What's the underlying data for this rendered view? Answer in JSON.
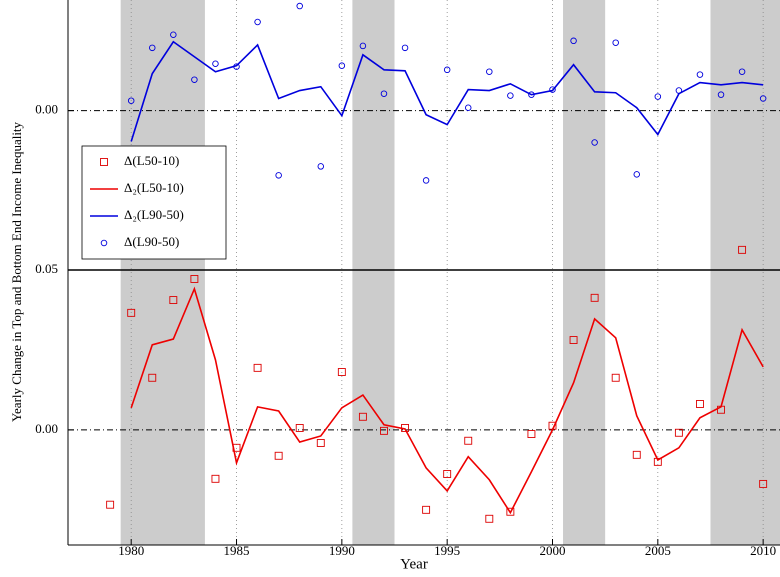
{
  "chart_data": [
    {
      "type": "line",
      "panel": "top",
      "ylim": [
        -0.05,
        0.0347
      ],
      "yticks": [
        {
          "value": 0,
          "label": "0.00"
        }
      ],
      "shaded_x": [
        [
          1979.5,
          1983.5
        ],
        [
          1990.5,
          1992.5
        ],
        [
          2000.5,
          2002.5
        ],
        [
          2007.5,
          2010.8
        ]
      ],
      "legend": "upper left",
      "series": [
        {
          "name": "Δ₂(L90-50)",
          "color": "#0000dd",
          "style": "line",
          "x": [
            1980,
            1981,
            1982,
            1983,
            1984,
            1985,
            1986,
            1987,
            1988,
            1989,
            1990,
            1991,
            1992,
            1993,
            1994,
            1995,
            1996,
            1997,
            1998,
            1999,
            2000,
            2001,
            2002,
            2003,
            2004,
            2005,
            2006,
            2007,
            2008,
            2009,
            2010
          ],
          "values": [
            -0.0097,
            0.0116,
            0.0216,
            0.0169,
            0.0122,
            0.0141,
            0.0206,
            0.0038,
            0.0063,
            0.0075,
            -0.0016,
            0.0175,
            0.0128,
            0.0125,
            -0.0013,
            -0.0044,
            0.0066,
            0.0063,
            0.0084,
            0.005,
            0.0063,
            0.0144,
            0.0059,
            0.0056,
            0.0009,
            -0.0075,
            0.0053,
            0.0088,
            0.0081,
            0.0088,
            0.0081
          ]
        },
        {
          "name": "Δ(L90-50)",
          "color": "#0000dd",
          "style": "marker",
          "marker": "circle",
          "x": [
            1980,
            1981,
            1982,
            1983,
            1984,
            1985,
            1986,
            1987,
            1988,
            1989,
            1990,
            1991,
            1992,
            1993,
            1994,
            1995,
            1996,
            1997,
            1998,
            1999,
            2000,
            2001,
            2002,
            2003,
            2004,
            2005,
            2006,
            2007,
            2008,
            2009,
            2010
          ],
          "values": [
            0.0031,
            0.0197,
            0.0238,
            0.0097,
            0.0147,
            0.0138,
            0.0278,
            -0.0203,
            0.0328,
            -0.0175,
            0.0141,
            0.0203,
            0.0053,
            0.0197,
            -0.0219,
            0.0128,
            0.0009,
            0.0122,
            0.0047,
            0.005,
            0.0066,
            0.0219,
            -0.01,
            0.0213,
            -0.02,
            0.0044,
            0.0063,
            0.0113,
            0.005,
            0.0122,
            0.0038
          ]
        }
      ]
    },
    {
      "type": "line",
      "panel": "bottom",
      "xlabel": "Year",
      "ylabel": "Yearly Change in Top and Bottom End Income Inequality",
      "xlim": [
        1977,
        2010.8
      ],
      "xticks": [
        1980,
        1985,
        1990,
        1995,
        2000,
        2005,
        2010
      ],
      "xgrid": true,
      "ylim": [
        -0.036,
        0.05
      ],
      "yticks": [
        {
          "value": 0,
          "label": "0.00"
        },
        {
          "value": 0.05,
          "label": "0.05"
        }
      ],
      "shaded_x": [
        [
          1979.5,
          1983.5
        ],
        [
          1990.5,
          1992.5
        ],
        [
          2000.5,
          2002.5
        ],
        [
          2007.5,
          2010.8
        ]
      ],
      "series": [
        {
          "name": "Δ(L50-10)",
          "color": "#dd0000",
          "style": "marker",
          "marker": "square",
          "x": [
            1979,
            1980,
            1981,
            1982,
            1983,
            1984,
            1985,
            1986,
            1987,
            1988,
            1989,
            1990,
            1991,
            1992,
            1993,
            1994,
            1995,
            1996,
            1997,
            1998,
            1999,
            2000,
            2001,
            2002,
            2003,
            2004,
            2005,
            2006,
            2007,
            2008,
            2009,
            2010
          ],
          "values": [
            -0.0234,
            0.0366,
            0.0163,
            0.0406,
            0.0472,
            -0.0153,
            -0.0056,
            0.0194,
            -0.0081,
            0.0006,
            -0.0041,
            0.0181,
            0.0041,
            -0.0003,
            0.0006,
            -0.025,
            -0.0138,
            -0.0034,
            -0.0278,
            -0.0256,
            -0.0013,
            0.0013,
            0.0281,
            0.0413,
            0.0163,
            -0.0078,
            -0.01,
            -0.0009,
            0.0081,
            0.0063,
            0.0563,
            -0.0169
          ]
        },
        {
          "name": "Δ₂(L50-10)",
          "color": "#ee0000",
          "style": "line",
          "x": [
            1980,
            1981,
            1982,
            1983,
            1984,
            1985,
            1986,
            1987,
            1988,
            1989,
            1990,
            1991,
            1992,
            1993,
            1994,
            1995,
            1996,
            1997,
            1998,
            1999,
            2000,
            2001,
            2002,
            2003,
            2004,
            2005,
            2006,
            2007,
            2008,
            2009,
            2010
          ],
          "values": [
            0.0069,
            0.0266,
            0.0284,
            0.0441,
            0.0219,
            -0.0103,
            0.0072,
            0.0059,
            -0.0038,
            -0.0019,
            0.0069,
            0.0109,
            0.0016,
            0.0003,
            -0.0119,
            -0.0191,
            -0.0084,
            -0.0156,
            -0.0259,
            -0.0131,
            0.0,
            0.0147,
            0.0347,
            0.0288,
            0.0044,
            -0.0094,
            -0.0056,
            0.0038,
            0.0072,
            0.0313,
            0.0197
          ]
        }
      ]
    }
  ]
}
